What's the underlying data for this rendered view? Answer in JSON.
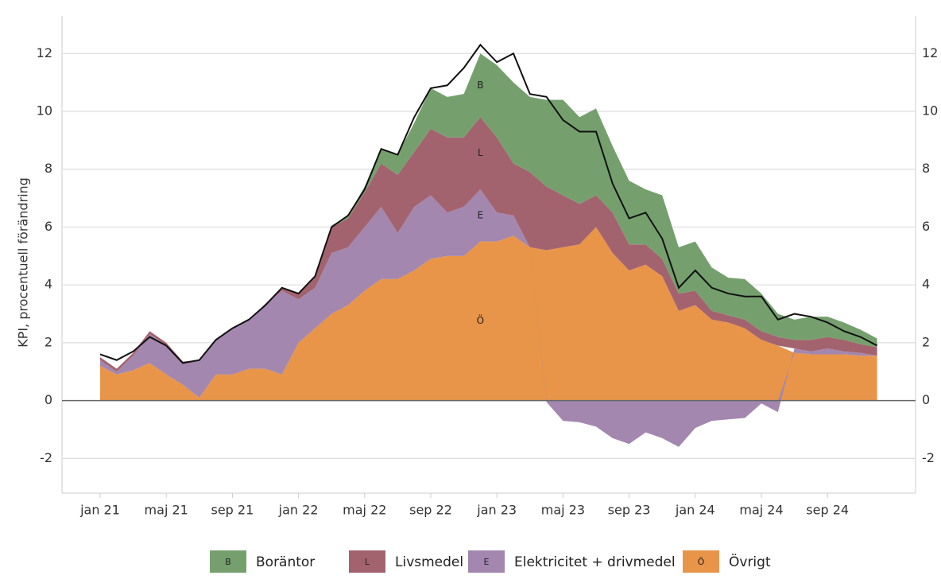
{
  "chart_data": {
    "type": "stacked-area",
    "y_label": "KPI, procentuell förändring",
    "categories": [
      "jan 21",
      null,
      null,
      null,
      "maj 21",
      null,
      null,
      null,
      "sep 21",
      null,
      null,
      null,
      "jan 22",
      null,
      null,
      null,
      "maj 22",
      null,
      null,
      null,
      "sep 22",
      null,
      null,
      null,
      "jan 23",
      null,
      null,
      null,
      "maj 23",
      null,
      null,
      null,
      "sep 23",
      null,
      null,
      null,
      "jan 24",
      null,
      null,
      null,
      "maj 24",
      null,
      null,
      null,
      "sep 24",
      null,
      null,
      null
    ],
    "series": [
      {
        "name": "Övrigt",
        "letter": "Ö",
        "color": "#e8954a",
        "values": [
          1.2,
          0.9,
          1.05,
          1.3,
          0.9,
          0.55,
          0.1,
          0.9,
          0.9,
          1.1,
          1.1,
          0.9,
          2.0,
          2.5,
          3.0,
          3.3,
          3.8,
          4.2,
          4.2,
          4.5,
          4.9,
          5.0,
          5.0,
          5.5,
          5.5,
          5.7,
          5.3,
          5.2,
          5.3,
          5.4,
          6.0,
          5.1,
          4.5,
          4.7,
          4.3,
          3.1,
          3.3,
          2.8,
          2.7,
          2.5,
          2.1,
          1.9,
          1.65,
          1.6,
          1.6,
          1.6,
          1.55,
          1.55
        ]
      },
      {
        "name": "Elektricitet + drivmedel",
        "letter": "E",
        "color": "#a387af",
        "values": [
          0.2,
          0.1,
          0.5,
          1.0,
          1.0,
          0.8,
          1.3,
          1.2,
          1.6,
          1.7,
          2.2,
          2.9,
          1.5,
          1.4,
          2.1,
          2.0,
          2.2,
          2.5,
          1.6,
          2.2,
          2.2,
          1.5,
          1.7,
          1.8,
          1.0,
          0.7,
          0.0,
          -0.05,
          -0.7,
          -0.75,
          -0.9,
          -1.3,
          -1.5,
          -1.1,
          -1.3,
          -1.6,
          -0.95,
          -0.7,
          -0.65,
          -0.6,
          -0.1,
          -0.4,
          0.15,
          0.1,
          0.2,
          0.1,
          0.1,
          0.0
        ]
      },
      {
        "name": "Livsmedel",
        "letter": "L",
        "color": "#a3636e",
        "values": [
          0.1,
          0.1,
          0.1,
          0.1,
          0.1,
          0.0,
          0.0,
          0.0,
          0.0,
          0.0,
          0.05,
          0.1,
          0.2,
          0.4,
          0.9,
          1.0,
          1.2,
          1.5,
          2.0,
          1.9,
          2.3,
          2.6,
          2.4,
          2.5,
          2.6,
          1.8,
          2.6,
          2.2,
          1.8,
          1.4,
          1.1,
          1.4,
          0.9,
          0.7,
          0.6,
          0.6,
          0.5,
          0.3,
          0.25,
          0.3,
          0.3,
          0.3,
          0.3,
          0.4,
          0.4,
          0.4,
          0.3,
          0.3
        ]
      },
      {
        "name": "Boräntor",
        "letter": "B",
        "color": "#75a06e",
        "values": [
          0,
          0,
          0,
          0,
          0,
          0,
          0,
          0,
          0,
          0,
          0,
          0,
          0,
          0,
          0.05,
          0.1,
          0.2,
          0.5,
          0.7,
          1.0,
          1.4,
          1.4,
          1.5,
          2.2,
          2.5,
          2.8,
          2.6,
          3.0,
          3.3,
          3.0,
          3.0,
          2.3,
          2.2,
          1.9,
          2.2,
          1.6,
          1.7,
          1.5,
          1.3,
          1.4,
          1.3,
          0.8,
          0.7,
          0.8,
          0.7,
          0.6,
          0.5,
          0.3
        ]
      }
    ],
    "total": {
      "color": "#111111",
      "values": [
        1.6,
        1.4,
        1.7,
        2.2,
        1.9,
        1.3,
        1.4,
        2.1,
        2.5,
        2.8,
        3.3,
        3.9,
        3.7,
        4.3,
        6.0,
        6.4,
        7.3,
        8.7,
        8.5,
        9.8,
        10.8,
        10.9,
        11.5,
        12.3,
        11.7,
        12.0,
        10.6,
        10.5,
        9.7,
        9.3,
        9.3,
        7.5,
        6.3,
        6.5,
        5.6,
        3.9,
        4.5,
        3.9,
        3.7,
        3.6,
        3.6,
        2.8,
        3.0,
        2.9,
        2.7,
        2.4,
        2.2,
        1.9
      ]
    },
    "ylim": [
      -3.2,
      13.3
    ],
    "yticks": [
      -2,
      0,
      2,
      4,
      6,
      8,
      10,
      12
    ],
    "grid": true,
    "legend": "bottom"
  }
}
